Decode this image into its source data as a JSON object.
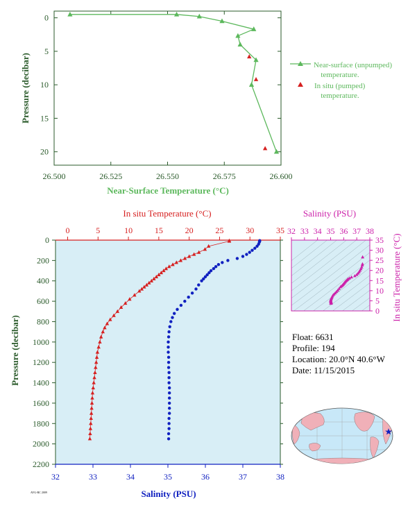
{
  "colors": {
    "green": "#5cb85c",
    "red": "#d62020",
    "blue": "#1020c0",
    "magenta": "#cc22aa",
    "axis_label": "#2a5a2a",
    "plot_bg": "#d8eef6",
    "land": "#f0b0b8",
    "ocean": "#c8e8f8"
  },
  "info": {
    "float_label": "Float:",
    "float_value": "6631",
    "profile_label": "Profile:",
    "profile_value": "194",
    "location_label": "Location:",
    "location_value": "20.0°N  40.6°W",
    "date_label": "Date:",
    "date_value": "11/15/2015"
  },
  "credit": "AVG-RC 2009",
  "chart_data": [
    {
      "type": "line",
      "name": "near-surface-panel",
      "xlabel": "Near-Surface Temperature (°C)",
      "ylabel": "Pressure (decibar)",
      "xlim": [
        26.5,
        26.6
      ],
      "ylim": [
        22,
        -1
      ],
      "xticks": [
        "26.500",
        "26.525",
        "26.550",
        "26.575",
        "26.600"
      ],
      "xtick_values": [
        26.5,
        26.525,
        26.55,
        26.575,
        26.6
      ],
      "yticks": [
        "0",
        "5",
        "10",
        "15",
        "20"
      ],
      "ytick_values": [
        0,
        5,
        10,
        15,
        20
      ],
      "legend_position": "right",
      "series": [
        {
          "name": "Near-surface (unpumped) temperature.",
          "legend_line1": "Near-surface (unpumped)",
          "legend_line2": "temperature.",
          "marker": "triangle-line",
          "points": [
            [
              26.507,
              -0.5
            ],
            [
              26.554,
              -0.5
            ],
            [
              26.564,
              -0.2
            ],
            [
              26.574,
              0.5
            ],
            [
              26.588,
              1.7
            ],
            [
              26.581,
              2.7
            ],
            [
              26.582,
              4.0
            ],
            [
              26.589,
              6.3
            ],
            [
              26.587,
              10.0
            ],
            [
              26.598,
              20.0
            ]
          ]
        },
        {
          "name": "In situ (pumped) temperature.",
          "legend_line1": "In situ (pumped)",
          "legend_line2": "temperature.",
          "marker": "triangle",
          "points": [
            [
              26.586,
              5.8
            ],
            [
              26.589,
              9.2
            ],
            [
              26.593,
              19.5
            ]
          ]
        }
      ]
    },
    {
      "type": "scatter",
      "name": "profile-panel",
      "xlabel_top": "In situ Temperature (°C)",
      "xlabel_bottom": "Salinity (PSU)",
      "ylabel": "Pressure (decibar)",
      "temp_lim": [
        -2,
        35
      ],
      "sal_lim": [
        32,
        38
      ],
      "ylim": [
        2200,
        0
      ],
      "temp_ticks": [
        0,
        5,
        10,
        15,
        20,
        25,
        30,
        35
      ],
      "sal_ticks": [
        32,
        33,
        34,
        35,
        36,
        37,
        38
      ],
      "yticks": [
        0,
        200,
        400,
        600,
        800,
        1000,
        1200,
        1400,
        1600,
        1800,
        2000,
        2200
      ],
      "temperature": {
        "pressure": [
          5,
          10,
          60,
          90,
          120,
          140,
          160,
          180,
          200,
          220,
          240,
          260,
          280,
          300,
          320,
          340,
          360,
          380,
          400,
          420,
          440,
          460,
          480,
          500,
          540,
          580,
          620,
          660,
          700,
          740,
          780,
          820,
          860,
          900,
          950,
          1000,
          1050,
          1100,
          1150,
          1200,
          1250,
          1300,
          1350,
          1400,
          1450,
          1500,
          1550,
          1600,
          1650,
          1700,
          1750,
          1800,
          1850,
          1900,
          1950
        ],
        "values": [
          26.6,
          26.6,
          23.2,
          22.6,
          21.6,
          20.8,
          20.0,
          19.3,
          18.6,
          17.9,
          17.3,
          16.7,
          16.2,
          15.8,
          15.4,
          15.0,
          14.6,
          14.2,
          13.8,
          13.4,
          13.0,
          12.6,
          12.2,
          11.8,
          11.0,
          10.2,
          9.5,
          8.8,
          8.2,
          7.6,
          7.0,
          6.5,
          6.1,
          5.8,
          5.5,
          5.3,
          5.1,
          4.9,
          4.8,
          4.7,
          4.6,
          4.5,
          4.4,
          4.3,
          4.2,
          4.1,
          4.05,
          4.0,
          3.95,
          3.9,
          3.85,
          3.8,
          3.75,
          3.7,
          3.65
        ]
      },
      "salinity": {
        "pressure": [
          5,
          10,
          20,
          40,
          60,
          80,
          100,
          120,
          140,
          160,
          180,
          200,
          220,
          240,
          260,
          280,
          300,
          320,
          340,
          360,
          380,
          400,
          440,
          480,
          520,
          560,
          600,
          640,
          680,
          720,
          760,
          800,
          850,
          900,
          950,
          1000,
          1050,
          1100,
          1150,
          1200,
          1250,
          1300,
          1350,
          1400,
          1450,
          1500,
          1550,
          1600,
          1650,
          1700,
          1750,
          1800,
          1850,
          1900,
          1950
        ],
        "values": [
          37.45,
          37.45,
          37.44,
          37.42,
          37.38,
          37.32,
          37.25,
          37.18,
          37.1,
          37.0,
          36.85,
          36.6,
          36.45,
          36.35,
          36.28,
          36.22,
          36.15,
          36.1,
          36.05,
          36.0,
          35.95,
          35.9,
          35.82,
          35.75,
          35.65,
          35.55,
          35.45,
          35.35,
          35.25,
          35.17,
          35.12,
          35.08,
          35.05,
          35.03,
          35.02,
          35.01,
          35.01,
          35.01,
          35.02,
          35.02,
          35.02,
          35.03,
          35.03,
          35.03,
          35.04,
          35.04,
          35.04,
          35.04,
          35.04,
          35.04,
          35.03,
          35.03,
          35.03,
          35.02,
          35.02
        ]
      }
    },
    {
      "type": "scatter",
      "name": "ts-panel",
      "xlabel": "Salinity (PSU)",
      "ylabel": "In situ Temperature (°C)",
      "xlim": [
        32,
        38
      ],
      "ylim": [
        0,
        35
      ],
      "xticks": [
        32,
        33,
        34,
        35,
        36,
        37,
        38
      ],
      "yticks": [
        0,
        5,
        10,
        15,
        20,
        25,
        30,
        35
      ]
    }
  ]
}
